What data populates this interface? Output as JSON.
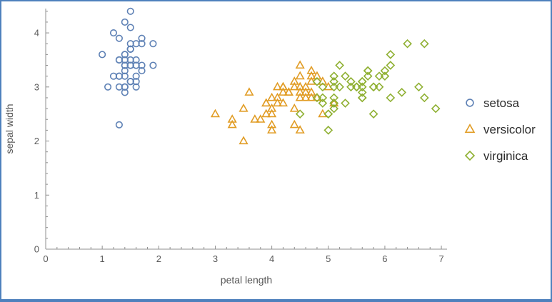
{
  "figure": {
    "border_color": "#4f81bd",
    "background": "#ffffff",
    "axis_color": "#8f8f8f",
    "tick_label_color": "#5a5a5a",
    "axis_label_color": "#555555"
  },
  "chart_data": {
    "type": "scatter",
    "title": "",
    "xlabel": "petal length",
    "ylabel": "sepal width",
    "xlim": [
      0,
      7.1
    ],
    "ylim": [
      0,
      4.45
    ],
    "x_ticks": [
      0,
      1,
      2,
      3,
      4,
      5,
      6,
      7
    ],
    "y_ticks": [
      0,
      1,
      2,
      3,
      4
    ],
    "grid": false,
    "legend_position": "right",
    "series": [
      {
        "name": "setosa",
        "marker": "circle",
        "color": "#5e81b5",
        "points": [
          [
            1.4,
            3.5
          ],
          [
            1.4,
            3.0
          ],
          [
            1.3,
            3.2
          ],
          [
            1.5,
            3.1
          ],
          [
            1.4,
            3.6
          ],
          [
            1.7,
            3.9
          ],
          [
            1.4,
            3.4
          ],
          [
            1.5,
            3.4
          ],
          [
            1.4,
            2.9
          ],
          [
            1.5,
            3.1
          ],
          [
            1.5,
            3.7
          ],
          [
            1.6,
            3.4
          ],
          [
            1.4,
            3.0
          ],
          [
            1.1,
            3.0
          ],
          [
            1.2,
            4.0
          ],
          [
            1.5,
            4.4
          ],
          [
            1.3,
            3.9
          ],
          [
            1.4,
            3.5
          ],
          [
            1.7,
            3.8
          ],
          [
            1.5,
            3.8
          ],
          [
            1.7,
            3.4
          ],
          [
            1.5,
            3.7
          ],
          [
            1.0,
            3.6
          ],
          [
            1.7,
            3.3
          ],
          [
            1.9,
            3.4
          ],
          [
            1.6,
            3.0
          ],
          [
            1.6,
            3.4
          ],
          [
            1.5,
            3.5
          ],
          [
            1.4,
            3.4
          ],
          [
            1.6,
            3.2
          ],
          [
            1.6,
            3.1
          ],
          [
            1.5,
            3.4
          ],
          [
            1.5,
            4.1
          ],
          [
            1.4,
            4.2
          ],
          [
            1.5,
            3.1
          ],
          [
            1.2,
            3.2
          ],
          [
            1.3,
            3.5
          ],
          [
            1.4,
            3.6
          ],
          [
            1.3,
            3.0
          ],
          [
            1.5,
            3.4
          ],
          [
            1.3,
            3.5
          ],
          [
            1.3,
            2.3
          ],
          [
            1.3,
            3.2
          ],
          [
            1.6,
            3.5
          ],
          [
            1.9,
            3.8
          ],
          [
            1.4,
            3.0
          ],
          [
            1.6,
            3.8
          ],
          [
            1.4,
            3.2
          ],
          [
            1.5,
            3.7
          ],
          [
            1.4,
            3.3
          ]
        ]
      },
      {
        "name": "versicolor",
        "marker": "triangle",
        "color": "#e19c24",
        "points": [
          [
            4.7,
            3.2
          ],
          [
            4.5,
            3.2
          ],
          [
            4.9,
            3.1
          ],
          [
            4.0,
            2.3
          ],
          [
            4.6,
            2.8
          ],
          [
            4.5,
            2.8
          ],
          [
            4.7,
            3.3
          ],
          [
            3.3,
            2.4
          ],
          [
            4.6,
            2.9
          ],
          [
            3.9,
            2.7
          ],
          [
            3.5,
            2.0
          ],
          [
            4.2,
            3.0
          ],
          [
            4.0,
            2.2
          ],
          [
            4.7,
            2.9
          ],
          [
            3.6,
            2.9
          ],
          [
            4.4,
            3.1
          ],
          [
            4.5,
            3.0
          ],
          [
            4.1,
            2.7
          ],
          [
            4.5,
            2.2
          ],
          [
            3.9,
            2.5
          ],
          [
            4.8,
            3.2
          ],
          [
            4.0,
            2.8
          ],
          [
            4.9,
            2.5
          ],
          [
            4.7,
            2.8
          ],
          [
            4.3,
            2.9
          ],
          [
            4.4,
            3.0
          ],
          [
            4.8,
            2.8
          ],
          [
            5.0,
            3.0
          ],
          [
            4.5,
            2.9
          ],
          [
            3.5,
            2.6
          ],
          [
            3.8,
            2.4
          ],
          [
            3.7,
            2.4
          ],
          [
            3.9,
            2.7
          ],
          [
            5.1,
            2.7
          ],
          [
            4.5,
            3.0
          ],
          [
            4.5,
            3.4
          ],
          [
            4.7,
            3.1
          ],
          [
            4.4,
            2.3
          ],
          [
            4.1,
            3.0
          ],
          [
            4.0,
            2.5
          ],
          [
            4.4,
            2.6
          ],
          [
            4.6,
            3.0
          ],
          [
            4.0,
            2.6
          ],
          [
            3.3,
            2.3
          ],
          [
            4.2,
            2.7
          ],
          [
            4.2,
            3.0
          ],
          [
            4.2,
            2.9
          ],
          [
            4.3,
            2.9
          ],
          [
            3.0,
            2.5
          ],
          [
            4.1,
            2.8
          ]
        ]
      },
      {
        "name": "virginica",
        "marker": "diamond",
        "color": "#8fb032",
        "points": [
          [
            6.0,
            3.3
          ],
          [
            5.1,
            2.7
          ],
          [
            5.9,
            3.0
          ],
          [
            5.6,
            2.9
          ],
          [
            5.8,
            3.0
          ],
          [
            6.6,
            3.0
          ],
          [
            4.5,
            2.5
          ],
          [
            6.3,
            2.9
          ],
          [
            5.8,
            2.5
          ],
          [
            6.1,
            3.6
          ],
          [
            5.1,
            3.2
          ],
          [
            5.3,
            2.7
          ],
          [
            5.5,
            3.0
          ],
          [
            5.0,
            2.5
          ],
          [
            5.1,
            2.8
          ],
          [
            5.3,
            3.2
          ],
          [
            5.5,
            3.0
          ],
          [
            6.7,
            3.8
          ],
          [
            6.9,
            2.6
          ],
          [
            5.0,
            2.2
          ],
          [
            5.7,
            3.2
          ],
          [
            4.9,
            2.8
          ],
          [
            6.7,
            2.8
          ],
          [
            4.9,
            2.7
          ],
          [
            5.7,
            3.3
          ],
          [
            6.0,
            3.2
          ],
          [
            4.8,
            2.8
          ],
          [
            4.9,
            3.0
          ],
          [
            5.6,
            2.8
          ],
          [
            5.8,
            3.0
          ],
          [
            6.1,
            2.8
          ],
          [
            6.4,
            3.8
          ],
          [
            5.6,
            2.8
          ],
          [
            5.1,
            2.6
          ],
          [
            5.6,
            3.0
          ],
          [
            6.1,
            3.4
          ],
          [
            5.6,
            3.1
          ],
          [
            5.5,
            3.0
          ],
          [
            4.8,
            3.1
          ],
          [
            5.4,
            3.1
          ],
          [
            5.6,
            3.1
          ],
          [
            5.1,
            3.1
          ],
          [
            5.1,
            2.7
          ],
          [
            5.9,
            3.2
          ],
          [
            5.7,
            3.3
          ],
          [
            5.2,
            3.0
          ],
          [
            5.0,
            2.5
          ],
          [
            5.2,
            3.4
          ],
          [
            5.4,
            3.0
          ],
          [
            5.1,
            3.0
          ]
        ]
      }
    ]
  }
}
